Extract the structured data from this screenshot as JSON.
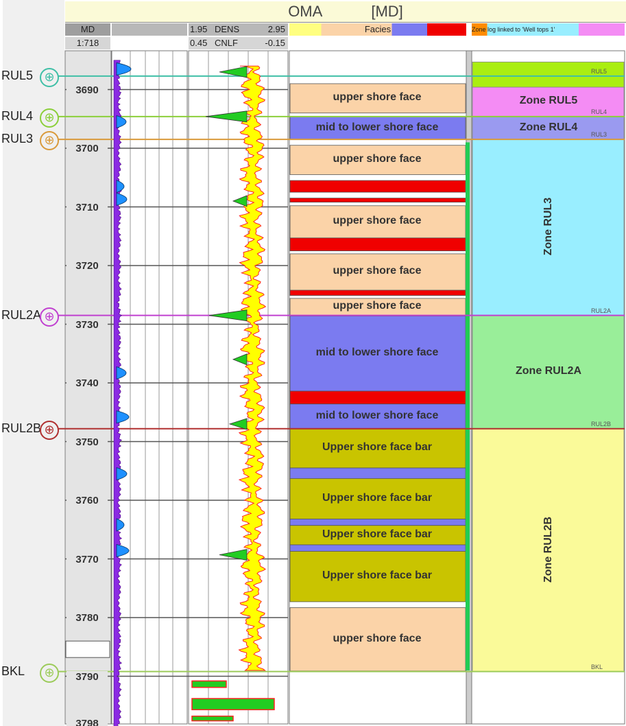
{
  "header": {
    "well_title": "OMA",
    "title_suffix": "[MD]",
    "md_label": "MD",
    "scale": "1:718",
    "dens_min": "1.95",
    "dens_name": "DENS",
    "dens_max": "2.95",
    "cnlf_min": "0.45",
    "cnlf_name": "CNLF",
    "cnlf_max": "-0.15",
    "facies_title": "Facies",
    "zone_title": "Zone log linked to 'Well tops 1'"
  },
  "depth_range": {
    "top": 3685,
    "bottom": 3799
  },
  "depth_ticks": [
    3690,
    3700,
    3710,
    3720,
    3730,
    3740,
    3750,
    3760,
    3770,
    3780,
    3790,
    3798
  ],
  "well_tops": [
    {
      "name": "RUL5",
      "depth": 3687.7,
      "color": "#3fbfa6",
      "zone_tag": "RUL5"
    },
    {
      "name": "RUL4",
      "depth": 3694.6,
      "color": "#8bcf3a",
      "zone_tag": "RUL4"
    },
    {
      "name": "RUL3",
      "depth": 3698.5,
      "color": "#d99a3b",
      "zone_tag": "RUL3"
    },
    {
      "name": "RUL2A",
      "depth": 3728.5,
      "color": "#c040d0",
      "zone_tag": "RUL2A"
    },
    {
      "name": "RUL2B",
      "depth": 3747.8,
      "color": "#b03030",
      "zone_tag": "RUL2B"
    },
    {
      "name": "BKL",
      "depth": 3789.2,
      "color": "#9ccb5a",
      "zone_tag": "BKL"
    }
  ],
  "facies": [
    {
      "top": 3689,
      "base": 3694,
      "label": "upper shore face",
      "color": "#fbd3a8"
    },
    {
      "top": 3694.6,
      "base": 3698.5,
      "label": "mid to lower shore face",
      "color": "#7b7bf0"
    },
    {
      "top": 3699.5,
      "base": 3704.5,
      "label": "upper shore face",
      "color": "#fbd3a8"
    },
    {
      "top": 3705.5,
      "base": 3707.5,
      "label": "",
      "color": "#f00000"
    },
    {
      "top": 3708.5,
      "base": 3709.2,
      "label": "",
      "color": "#f00000"
    },
    {
      "top": 3709.8,
      "base": 3715.3,
      "label": "upper shore face",
      "color": "#fbd3a8"
    },
    {
      "top": 3715.3,
      "base": 3717.5,
      "label": "",
      "color": "#f00000"
    },
    {
      "top": 3718,
      "base": 3724.2,
      "label": "upper shore face",
      "color": "#fbd3a8"
    },
    {
      "top": 3724.2,
      "base": 3725.1,
      "label": "",
      "color": "#f00000"
    },
    {
      "top": 3725.6,
      "base": 3728.5,
      "label": "upper shore face",
      "color": "#fbd3a8"
    },
    {
      "top": 3728.6,
      "base": 3741.4,
      "label": "mid to lower shore face",
      "color": "#7b7bf0"
    },
    {
      "top": 3741.4,
      "base": 3743.6,
      "label": "",
      "color": "#f00000"
    },
    {
      "top": 3743.6,
      "base": 3747.8,
      "label": "mid to lower shore face",
      "color": "#7b7bf0"
    },
    {
      "top": 3747.8,
      "base": 3754.5,
      "label": "Upper shore face bar",
      "color": "#c9c400"
    },
    {
      "top": 3754.5,
      "base": 3756.3,
      "label": "",
      "color": "#7b7bf0"
    },
    {
      "top": 3756.3,
      "base": 3763.2,
      "label": "Upper shore face bar",
      "color": "#c9c400"
    },
    {
      "top": 3763.2,
      "base": 3764.3,
      "label": "",
      "color": "#7b7bf0"
    },
    {
      "top": 3764.3,
      "base": 3767.6,
      "label": "Upper shore face bar",
      "color": "#c9c400"
    },
    {
      "top": 3767.6,
      "base": 3768.7,
      "label": "",
      "color": "#7b7bf0"
    },
    {
      "top": 3768.7,
      "base": 3777.3,
      "label": "Upper shore face bar",
      "color": "#c9c400"
    },
    {
      "top": 3778.3,
      "base": 3789.1,
      "label": "upper shore face",
      "color": "#fbd3a8"
    }
  ],
  "zones": [
    {
      "top": 3685.3,
      "base": 3689.6,
      "label": "",
      "color": "#aaee11",
      "vertical": false
    },
    {
      "top": 3689.6,
      "base": 3694.6,
      "label": "Zone RUL5",
      "color": "#f48cf4",
      "vertical": false
    },
    {
      "top": 3694.6,
      "base": 3698.5,
      "label": "Zone RUL4",
      "color": "#9a9af0",
      "vertical": false
    },
    {
      "top": 3698.5,
      "base": 3728.5,
      "label": "Zone RUL3",
      "color": "#99eeff",
      "vertical": true
    },
    {
      "top": 3728.5,
      "base": 3747.8,
      "label": "Zone RUL2A",
      "color": "#99ee99",
      "vertical": false
    },
    {
      "top": 3747.8,
      "base": 3789.2,
      "label": "Zone RUL2B",
      "color": "#fafa99",
      "vertical": true
    }
  ],
  "colors": {
    "gr_fill": "#8a2be2",
    "gr_spike": "#1e90ff",
    "dens_fill": "#ffff00",
    "sep_fill": "#22cc22",
    "dens_line": "#ff2222",
    "cnlf_line": "#222222",
    "grid": "#9a9a9a"
  }
}
